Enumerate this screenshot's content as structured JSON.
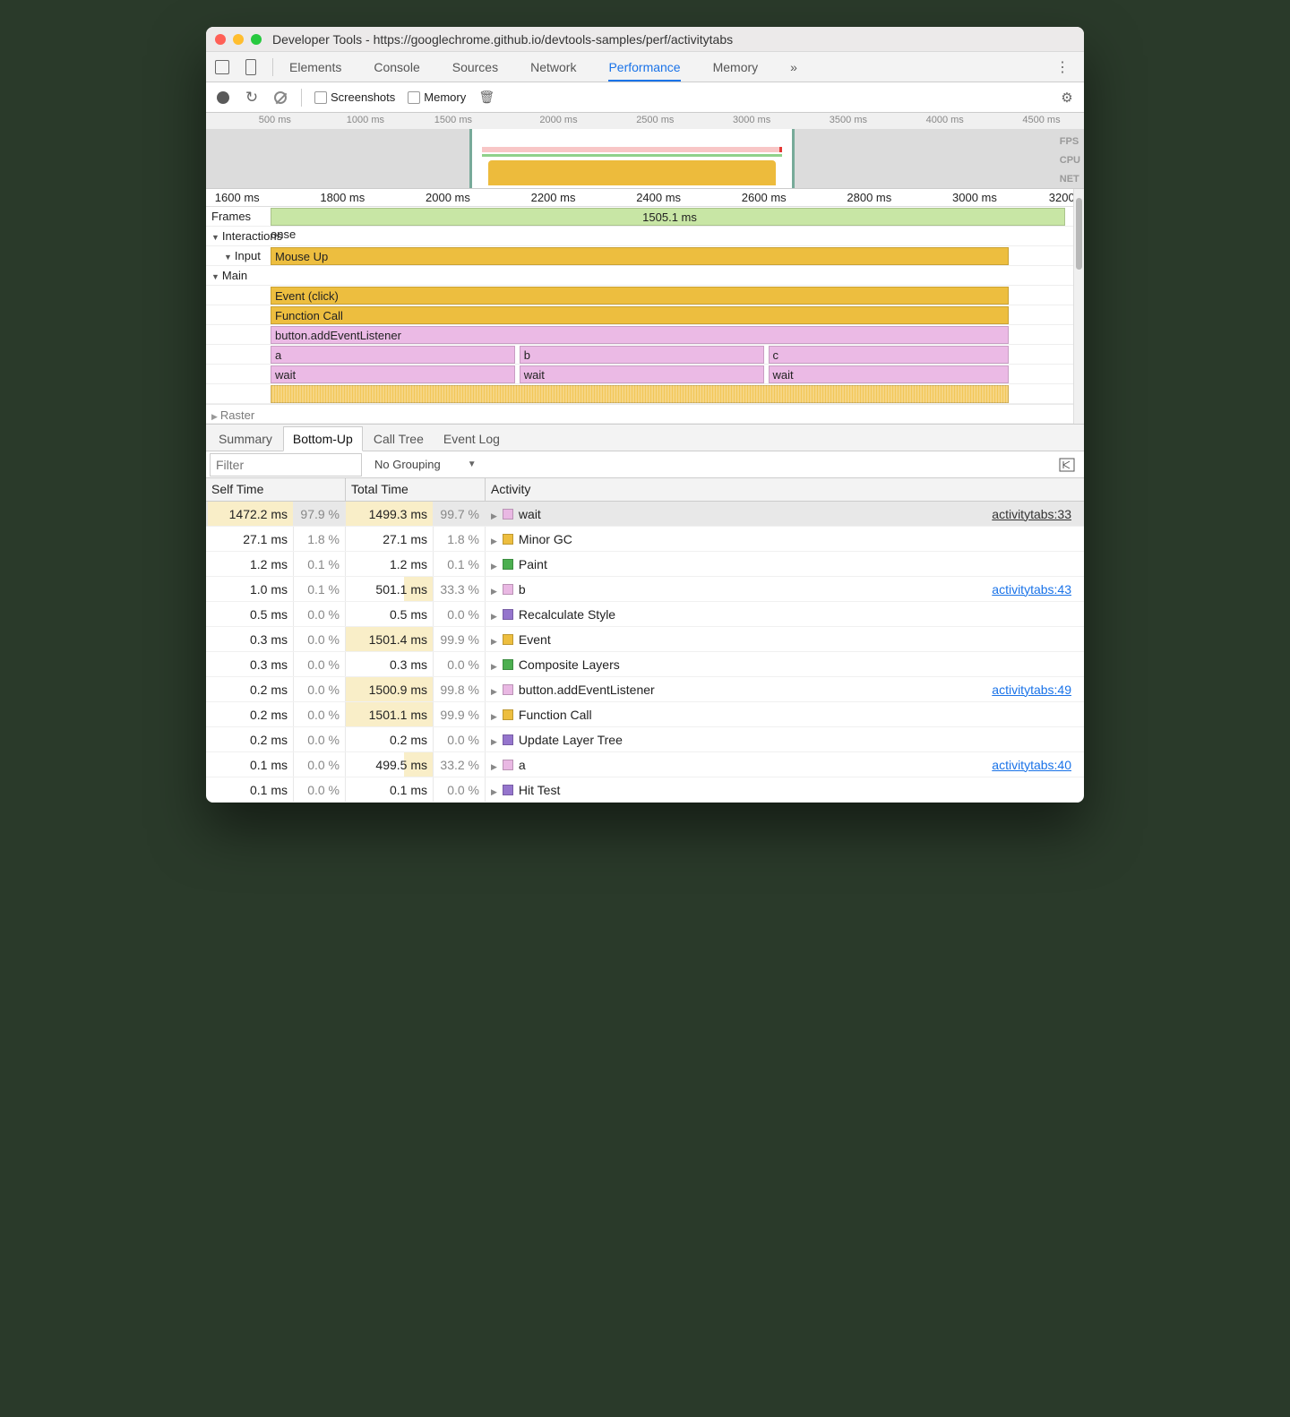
{
  "window": {
    "title": "Developer Tools - https://googlechrome.github.io/devtools-samples/perf/activitytabs"
  },
  "mainTabs": {
    "items": [
      "Elements",
      "Console",
      "Sources",
      "Network",
      "Performance",
      "Memory"
    ],
    "active": "Performance"
  },
  "toolbar": {
    "screenshots_label": "Screenshots",
    "memory_label": "Memory"
  },
  "overview": {
    "ticks": [
      {
        "label": "500 ms",
        "pct": 6
      },
      {
        "label": "1000 ms",
        "pct": 16
      },
      {
        "label": "1500 ms",
        "pct": 26
      },
      {
        "label": "2000 ms",
        "pct": 38
      },
      {
        "label": "2500 ms",
        "pct": 49
      },
      {
        "label": "3000 ms",
        "pct": 60
      },
      {
        "label": "3500 ms",
        "pct": 71
      },
      {
        "label": "4000 ms",
        "pct": 82
      },
      {
        "label": "4500 ms",
        "pct": 93
      }
    ],
    "selection": {
      "left_pct": 30,
      "width_pct": 37
    },
    "pink": {
      "left_pct": 31,
      "width_pct": 35
    },
    "green": {
      "left_pct": 31,
      "width_pct": 35
    },
    "yellow": {
      "left_pct": 31.5,
      "width_pct": 34
    },
    "labels": {
      "fps": "FPS",
      "cpu": "CPU",
      "net": "NET"
    }
  },
  "timeline": {
    "ruler": [
      {
        "label": "1600 ms",
        "pct": 1
      },
      {
        "label": "1800 ms",
        "pct": 13
      },
      {
        "label": "2000 ms",
        "pct": 25
      },
      {
        "label": "2200 ms",
        "pct": 37
      },
      {
        "label": "2400 ms",
        "pct": 49
      },
      {
        "label": "2600 ms",
        "pct": 61
      },
      {
        "label": "2800 ms",
        "pct": 73
      },
      {
        "label": "3000 ms",
        "pct": 85
      },
      {
        "label": "3200",
        "pct": 96
      }
    ],
    "frames_label": "Frames",
    "frames_bar": {
      "label": "1505.1 ms",
      "left_pct": 0,
      "width_pct": 99,
      "center": true
    },
    "interactions": {
      "label": "Interactions",
      "sub": "onse"
    },
    "input": {
      "label": "Input",
      "bar_label": "Mouse Up",
      "left_pct": 0,
      "width_pct": 92
    },
    "main": {
      "label": "Main",
      "rows": [
        {
          "bars": [
            {
              "cls": "yel",
              "label": "Event (click)",
              "left_pct": 0,
              "width_pct": 92
            }
          ]
        },
        {
          "bars": [
            {
              "cls": "yel",
              "label": "Function Call",
              "left_pct": 0,
              "width_pct": 92
            }
          ]
        },
        {
          "bars": [
            {
              "cls": "pnk",
              "label": "button.addEventListener",
              "left_pct": 0,
              "width_pct": 92
            }
          ]
        },
        {
          "bars": [
            {
              "cls": "pnk",
              "label": "a",
              "left_pct": 0,
              "width_pct": 30.5
            },
            {
              "cls": "pnk",
              "label": "b",
              "left_pct": 31,
              "width_pct": 30.5
            },
            {
              "cls": "pnk",
              "label": "c",
              "left_pct": 62,
              "width_pct": 30
            }
          ]
        },
        {
          "bars": [
            {
              "cls": "pnk",
              "label": "wait",
              "left_pct": 0,
              "width_pct": 30.5
            },
            {
              "cls": "pnk",
              "label": "wait",
              "left_pct": 31,
              "width_pct": 30.5
            },
            {
              "cls": "pnk",
              "label": "wait",
              "left_pct": 62,
              "width_pct": 30
            }
          ]
        },
        {
          "bars": [
            {
              "cls": "yel-stripe",
              "label": "",
              "left_pct": 0,
              "width_pct": 92
            }
          ]
        }
      ]
    },
    "raster_label": "Raster"
  },
  "subtabs": {
    "items": [
      "Summary",
      "Bottom-Up",
      "Call Tree",
      "Event Log"
    ],
    "active": "Bottom-Up"
  },
  "filter": {
    "placeholder": "Filter",
    "grouping": "No Grouping"
  },
  "table": {
    "headers": {
      "self": "Self Time",
      "total": "Total Time",
      "activity": "Activity"
    },
    "col_widths": {
      "ms": 98,
      "pct": 58
    },
    "rows": [
      {
        "self_ms": "1472.2 ms",
        "self_pct": "97.9 %",
        "self_bar": 98,
        "total_ms": "1499.3 ms",
        "total_pct": "99.7 %",
        "total_bar": 100,
        "color": "#e9b8e3",
        "name": "wait",
        "link": "activitytabs:33",
        "link_style": "u",
        "selected": true
      },
      {
        "self_ms": "27.1 ms",
        "self_pct": "1.8 %",
        "self_bar": 0,
        "total_ms": "27.1 ms",
        "total_pct": "1.8 %",
        "total_bar": 0,
        "color": "#edbe3f",
        "name": "Minor GC"
      },
      {
        "self_ms": "1.2 ms",
        "self_pct": "0.1 %",
        "self_bar": 0,
        "total_ms": "1.2 ms",
        "total_pct": "0.1 %",
        "total_bar": 0,
        "color": "#4caf50",
        "name": "Paint"
      },
      {
        "self_ms": "1.0 ms",
        "self_pct": "0.1 %",
        "self_bar": 0,
        "total_ms": "501.1 ms",
        "total_pct": "33.3 %",
        "total_bar": 33,
        "color": "#e9b8e3",
        "name": "b",
        "link": "activitytabs:43"
      },
      {
        "self_ms": "0.5 ms",
        "self_pct": "0.0 %",
        "self_bar": 0,
        "total_ms": "0.5 ms",
        "total_pct": "0.0 %",
        "total_bar": 0,
        "color": "#9575cd",
        "name": "Recalculate Style"
      },
      {
        "self_ms": "0.3 ms",
        "self_pct": "0.0 %",
        "self_bar": 0,
        "total_ms": "1501.4 ms",
        "total_pct": "99.9 %",
        "total_bar": 100,
        "color": "#edbe3f",
        "name": "Event"
      },
      {
        "self_ms": "0.3 ms",
        "self_pct": "0.0 %",
        "self_bar": 0,
        "total_ms": "0.3 ms",
        "total_pct": "0.0 %",
        "total_bar": 0,
        "color": "#4caf50",
        "name": "Composite Layers"
      },
      {
        "self_ms": "0.2 ms",
        "self_pct": "0.0 %",
        "self_bar": 0,
        "total_ms": "1500.9 ms",
        "total_pct": "99.8 %",
        "total_bar": 100,
        "color": "#e9b8e3",
        "name": "button.addEventListener",
        "link": "activitytabs:49"
      },
      {
        "self_ms": "0.2 ms",
        "self_pct": "0.0 %",
        "self_bar": 0,
        "total_ms": "1501.1 ms",
        "total_pct": "99.9 %",
        "total_bar": 100,
        "color": "#edbe3f",
        "name": "Function Call"
      },
      {
        "self_ms": "0.2 ms",
        "self_pct": "0.0 %",
        "self_bar": 0,
        "total_ms": "0.2 ms",
        "total_pct": "0.0 %",
        "total_bar": 0,
        "color": "#9575cd",
        "name": "Update Layer Tree"
      },
      {
        "self_ms": "0.1 ms",
        "self_pct": "0.0 %",
        "self_bar": 0,
        "total_ms": "499.5 ms",
        "total_pct": "33.2 %",
        "total_bar": 33,
        "color": "#e9b8e3",
        "name": "a",
        "link": "activitytabs:40"
      },
      {
        "self_ms": "0.1 ms",
        "self_pct": "0.0 %",
        "self_bar": 0,
        "total_ms": "0.1 ms",
        "total_pct": "0.0 %",
        "total_bar": 0,
        "color": "#9575cd",
        "name": "Hit Test"
      }
    ]
  }
}
